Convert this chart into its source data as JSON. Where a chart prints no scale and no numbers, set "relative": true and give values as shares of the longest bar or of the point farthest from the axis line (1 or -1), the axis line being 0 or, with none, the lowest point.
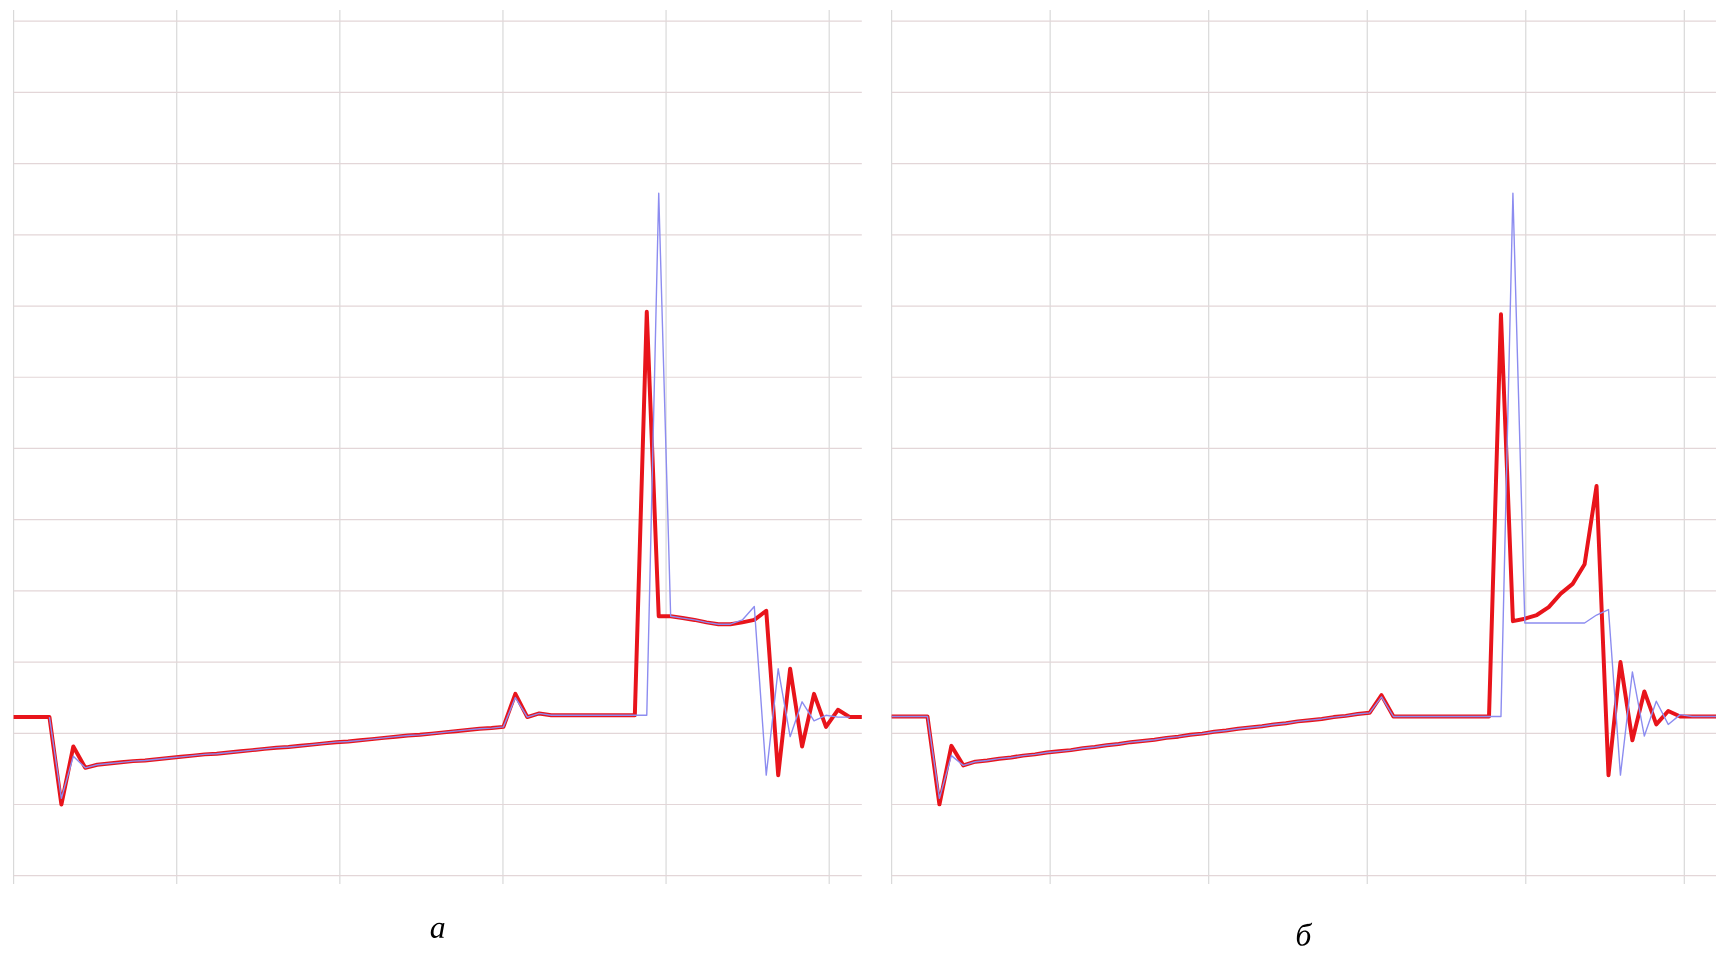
{
  "chart_data": [
    {
      "type": "line",
      "title": "*а*",
      "relative": true,
      "grid": true,
      "categories": [
        null,
        null,
        null,
        null,
        null,
        null,
        null,
        null,
        null,
        null,
        null,
        null,
        null,
        null,
        null,
        null,
        null,
        null,
        null,
        null,
        null,
        null,
        null,
        null,
        null,
        null,
        null,
        null,
        null,
        null,
        null,
        null,
        null,
        null,
        null,
        null,
        null,
        null,
        null,
        null,
        null,
        null,
        null,
        null,
        null,
        null,
        null,
        null,
        null,
        null,
        null,
        null,
        null,
        null,
        null,
        null,
        null,
        null,
        null,
        null,
        null,
        null,
        null,
        null,
        null,
        null,
        null,
        null,
        null,
        null,
        null,
        null
      ],
      "series": [
        {
          "color": "#8c8cf0",
          "values": [
            null,
            null,
            null,
            0.143,
            0.01,
            0.079,
            0.06,
            0.065,
            0.067,
            0.069,
            0.071,
            0.072,
            0.074,
            0.076,
            0.078,
            0.08,
            0.082,
            0.083,
            0.085,
            0.087,
            0.089,
            0.091,
            0.093,
            0.094,
            0.096,
            0.098,
            0.1,
            0.102,
            0.103,
            0.105,
            0.107,
            0.109,
            0.111,
            0.113,
            0.114,
            0.116,
            0.118,
            0.12,
            0.122,
            0.124,
            0.125,
            0.127,
            0.175,
            0.143,
            0.149,
            0.146,
            0.146,
            0.146,
            0.146,
            0.146,
            0.146,
            0.146,
            0.146,
            0.146,
            1.0,
            0.308,
            0.305,
            0.302,
            0.298,
            0.295,
            0.295,
            0.302,
            0.324,
            0.048,
            0.222,
            0.111,
            0.168,
            0.137,
            0.146,
            0.143,
            0.143,
            null
          ]
        },
        {
          "color": "#e8141b",
          "values": [
            0.143,
            0.143,
            0.143,
            0.143,
            0.0,
            0.095,
            0.06,
            0.065,
            0.067,
            0.069,
            0.071,
            0.072,
            0.074,
            0.076,
            0.078,
            0.08,
            0.082,
            0.083,
            0.085,
            0.087,
            0.089,
            0.091,
            0.093,
            0.094,
            0.096,
            0.098,
            0.1,
            0.102,
            0.103,
            0.105,
            0.107,
            0.109,
            0.111,
            0.113,
            0.114,
            0.116,
            0.118,
            0.12,
            0.122,
            0.124,
            0.125,
            0.127,
            0.181,
            0.143,
            0.149,
            0.146,
            0.146,
            0.146,
            0.146,
            0.146,
            0.146,
            0.146,
            0.146,
            0.806,
            0.308,
            0.308,
            0.305,
            0.302,
            0.298,
            0.295,
            0.295,
            0.298,
            0.302,
            0.317,
            0.048,
            0.222,
            0.095,
            0.181,
            0.127,
            0.155,
            0.143,
            0.143
          ]
        }
      ]
    },
    {
      "type": "line",
      "title": "*б*",
      "relative": true,
      "grid": true,
      "categories": [
        null,
        null,
        null,
        null,
        null,
        null,
        null,
        null,
        null,
        null,
        null,
        null,
        null,
        null,
        null,
        null,
        null,
        null,
        null,
        null,
        null,
        null,
        null,
        null,
        null,
        null,
        null,
        null,
        null,
        null,
        null,
        null,
        null,
        null,
        null,
        null,
        null,
        null,
        null,
        null,
        null,
        null,
        null,
        null,
        null,
        null,
        null,
        null,
        null,
        null,
        null,
        null,
        null,
        null,
        null,
        null,
        null,
        null,
        null,
        null,
        null,
        null,
        null,
        null,
        null,
        null,
        null,
        null,
        null,
        null
      ],
      "series": [
        {
          "color": "#8c8cf0",
          "values": [
            0.144,
            0.144,
            0.144,
            0.144,
            0.01,
            0.08,
            0.064,
            0.07,
            0.072,
            0.075,
            0.077,
            0.08,
            0.082,
            0.085,
            0.087,
            0.089,
            0.092,
            0.094,
            0.097,
            0.099,
            0.102,
            0.104,
            0.106,
            0.109,
            0.111,
            0.114,
            0.116,
            0.119,
            0.121,
            0.124,
            0.126,
            0.128,
            0.131,
            0.133,
            0.136,
            0.138,
            0.14,
            0.143,
            0.145,
            0.148,
            0.15,
            0.176,
            0.144,
            0.144,
            0.144,
            0.144,
            0.144,
            0.144,
            0.144,
            0.144,
            0.144,
            0.144,
            1.0,
            0.297,
            0.297,
            0.297,
            0.297,
            0.297,
            0.297,
            0.31,
            0.319,
            0.048,
            0.217,
            0.112,
            0.169,
            0.131,
            0.147,
            0.144,
            0.144,
            0.144
          ]
        },
        {
          "color": "#e8141b",
          "values": [
            0.144,
            0.144,
            0.144,
            0.144,
            0.0,
            0.096,
            0.064,
            0.07,
            0.072,
            0.075,
            0.077,
            0.08,
            0.082,
            0.085,
            0.087,
            0.089,
            0.092,
            0.094,
            0.097,
            0.099,
            0.102,
            0.104,
            0.106,
            0.109,
            0.111,
            0.114,
            0.116,
            0.119,
            0.121,
            0.124,
            0.126,
            0.128,
            0.131,
            0.133,
            0.136,
            0.138,
            0.14,
            0.143,
            0.145,
            0.148,
            0.15,
            0.179,
            0.144,
            0.144,
            0.144,
            0.144,
            0.144,
            0.144,
            0.144,
            0.144,
            0.144,
            0.802,
            0.3,
            0.304,
            0.31,
            0.323,
            0.345,
            0.361,
            0.393,
            0.521,
            0.048,
            0.233,
            0.105,
            0.185,
            0.131,
            0.153,
            0.144,
            0.144,
            0.144,
            0.144
          ]
        }
      ]
    }
  ]
}
